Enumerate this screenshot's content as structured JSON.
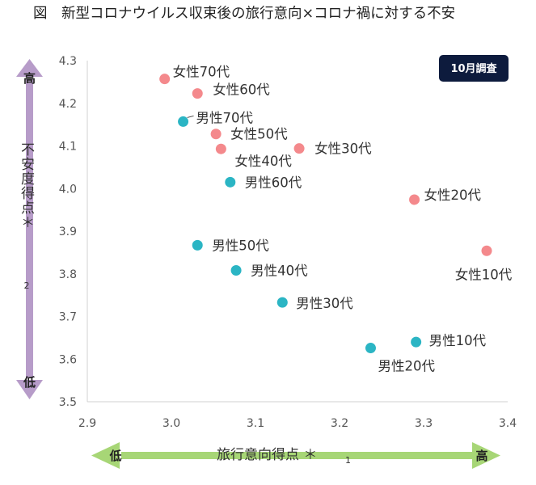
{
  "title": "図　新型コロナウイルス収束後の旅行意向×コロナ禍に対する不安",
  "badge": "10月調査",
  "colors": {
    "female": "#f4898c",
    "male": "#2bb5c4",
    "badge_bg": "#0d1b3d",
    "vertical_arrow": "#b79cc9",
    "horizontal_arrow": "#a7d676",
    "axis": "#d0d0d0"
  },
  "chart_data": {
    "type": "scatter",
    "xlim": [
      2.9,
      3.4
    ],
    "ylim": [
      3.5,
      4.3
    ],
    "x_ticks": [
      "2.9",
      "3.0",
      "3.1",
      "3.2",
      "3.3",
      "3.4"
    ],
    "y_ticks": [
      "3.5",
      "3.6",
      "3.7",
      "3.8",
      "3.9",
      "4.0",
      "4.1",
      "4.2",
      "4.3"
    ],
    "xlabel": "旅行意向得点 ＊",
    "xlabel_sub": "1",
    "ylabel": "不安度得点＊",
    "ylabel_sub": "2",
    "x_low": "低",
    "x_high": "高",
    "y_low": "低",
    "y_high": "高",
    "grid": false,
    "series": [
      {
        "group": "female",
        "points": [
          {
            "label": "女性70代",
            "x": 2.992,
            "y": 4.257
          },
          {
            "label": "女性60代",
            "x": 3.031,
            "y": 4.223
          },
          {
            "label": "女性50代",
            "x": 3.053,
            "y": 4.128
          },
          {
            "label": "女性40代",
            "x": 3.059,
            "y": 4.093
          },
          {
            "label": "女性30代",
            "x": 3.152,
            "y": 4.094
          },
          {
            "label": "女性20代",
            "x": 3.289,
            "y": 3.974
          },
          {
            "label": "女性10代",
            "x": 3.375,
            "y": 3.854
          }
        ]
      },
      {
        "group": "male",
        "points": [
          {
            "label": "男性70代",
            "x": 3.014,
            "y": 4.157
          },
          {
            "label": "男性60代",
            "x": 3.07,
            "y": 4.015
          },
          {
            "label": "男性50代",
            "x": 3.031,
            "y": 3.867
          },
          {
            "label": "男性40代",
            "x": 3.077,
            "y": 3.808
          },
          {
            "label": "男性30代",
            "x": 3.132,
            "y": 3.733
          },
          {
            "label": "男性20代",
            "x": 3.237,
            "y": 3.626
          },
          {
            "label": "男性10代",
            "x": 3.291,
            "y": 3.64
          }
        ]
      }
    ]
  }
}
